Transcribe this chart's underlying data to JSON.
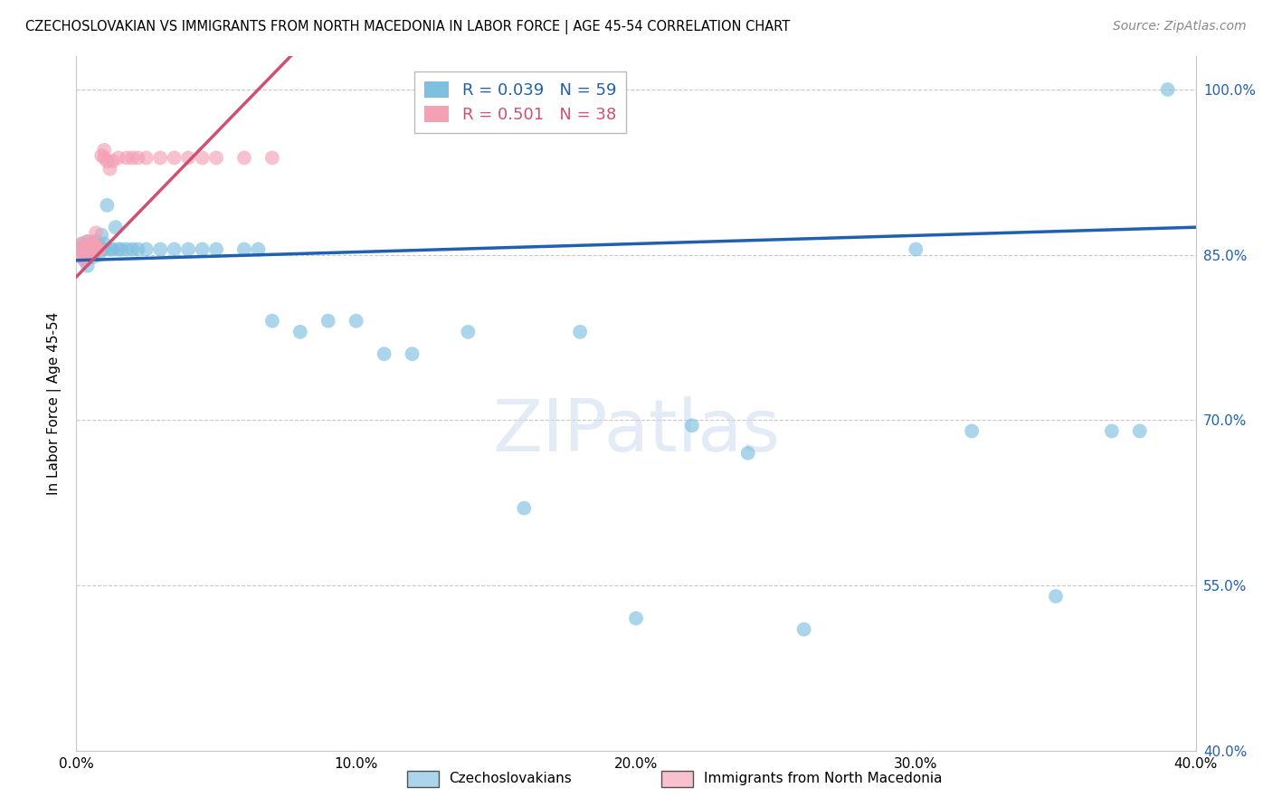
{
  "title": "CZECHOSLOVAKIAN VS IMMIGRANTS FROM NORTH MACEDONIA IN LABOR FORCE | AGE 45-54 CORRELATION CHART",
  "source": "Source: ZipAtlas.com",
  "ylabel": "In Labor Force | Age 45-54",
  "xlim": [
    0.0,
    0.4
  ],
  "ylim": [
    0.4,
    1.03
  ],
  "yticks": [
    0.4,
    0.55,
    0.7,
    0.85,
    1.0
  ],
  "ytick_labels": [
    "40.0%",
    "55.0%",
    "70.0%",
    "85.0%",
    "100.0%"
  ],
  "xticks": [
    0.0,
    0.1,
    0.2,
    0.3,
    0.4
  ],
  "xtick_labels": [
    "0.0%",
    "10.0%",
    "20.0%",
    "30.0%",
    "40.0%"
  ],
  "blue_R": 0.039,
  "blue_N": 59,
  "pink_R": 0.501,
  "pink_N": 38,
  "blue_color": "#7fbfdf",
  "pink_color": "#f4a0b5",
  "blue_line_color": "#2060b0",
  "pink_line_color": "#d05070",
  "grid_color": "#c8c8c8",
  "blue_x": [
    0.001,
    0.002,
    0.002,
    0.003,
    0.003,
    0.003,
    0.004,
    0.004,
    0.004,
    0.005,
    0.005,
    0.005,
    0.006,
    0.006,
    0.006,
    0.007,
    0.007,
    0.008,
    0.008,
    0.009,
    0.009,
    0.01,
    0.01,
    0.011,
    0.012,
    0.013,
    0.014,
    0.015,
    0.016,
    0.018,
    0.02,
    0.022,
    0.025,
    0.03,
    0.035,
    0.04,
    0.045,
    0.05,
    0.06,
    0.065,
    0.07,
    0.08,
    0.09,
    0.1,
    0.11,
    0.12,
    0.14,
    0.16,
    0.18,
    0.2,
    0.22,
    0.24,
    0.26,
    0.3,
    0.32,
    0.35,
    0.37,
    0.38,
    0.39
  ],
  "blue_y": [
    0.855,
    0.86,
    0.848,
    0.852,
    0.845,
    0.858,
    0.862,
    0.84,
    0.855,
    0.85,
    0.855,
    0.858,
    0.848,
    0.86,
    0.855,
    0.855,
    0.862,
    0.85,
    0.858,
    0.868,
    0.855,
    0.86,
    0.855,
    0.895,
    0.855,
    0.855,
    0.875,
    0.855,
    0.855,
    0.855,
    0.855,
    0.855,
    0.855,
    0.855,
    0.855,
    0.855,
    0.855,
    0.855,
    0.855,
    0.855,
    0.79,
    0.78,
    0.79,
    0.79,
    0.76,
    0.76,
    0.78,
    0.62,
    0.78,
    0.52,
    0.695,
    0.67,
    0.51,
    0.855,
    0.69,
    0.54,
    0.69,
    0.69,
    1.0
  ],
  "pink_x": [
    0.001,
    0.002,
    0.002,
    0.003,
    0.003,
    0.003,
    0.004,
    0.004,
    0.005,
    0.005,
    0.006,
    0.006,
    0.006,
    0.007,
    0.007,
    0.007,
    0.007,
    0.007,
    0.008,
    0.008,
    0.009,
    0.01,
    0.01,
    0.011,
    0.012,
    0.013,
    0.015,
    0.018,
    0.02,
    0.022,
    0.025,
    0.03,
    0.035,
    0.04,
    0.045,
    0.05,
    0.06,
    0.07
  ],
  "pink_y": [
    0.855,
    0.86,
    0.848,
    0.855,
    0.848,
    0.845,
    0.858,
    0.862,
    0.85,
    0.855,
    0.855,
    0.862,
    0.858,
    0.87,
    0.855,
    0.855,
    0.855,
    0.858,
    0.855,
    0.855,
    0.94,
    0.938,
    0.945,
    0.935,
    0.928,
    0.935,
    0.938,
    0.938,
    0.938,
    0.938,
    0.938,
    0.938,
    0.938,
    0.938,
    0.938,
    0.938,
    0.938,
    0.938
  ]
}
